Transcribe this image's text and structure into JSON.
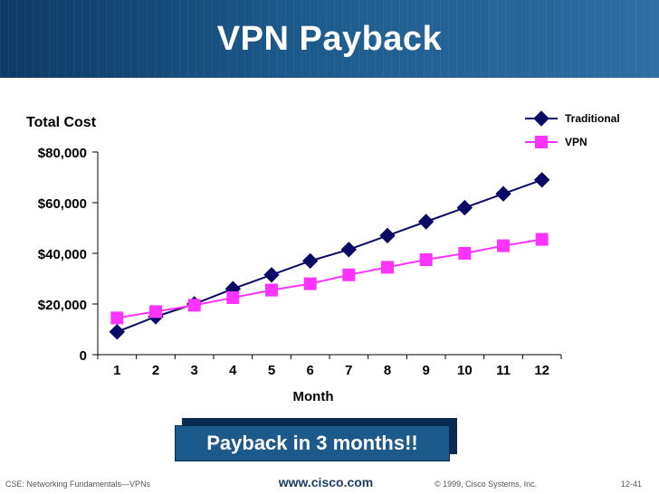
{
  "slide": {
    "title": "VPN Payback",
    "callout": "Payback in 3 months!!",
    "footer_left": "CSE: Networking Fundamentals—VPNs",
    "footer_center": "www.cisco.com",
    "footer_copyright": "© 1999, Cisco Systems, Inc.",
    "footer_page": "12-41"
  },
  "chart_data": {
    "type": "line",
    "title": "",
    "ylabel": "Total Cost",
    "xlabel": "Month",
    "categories": [
      "1",
      "2",
      "3",
      "4",
      "5",
      "6",
      "7",
      "8",
      "9",
      "10",
      "11",
      "12"
    ],
    "ylim": [
      0,
      80000
    ],
    "yticks": [
      0,
      20000,
      40000,
      60000,
      80000
    ],
    "ytick_labels": [
      "0",
      "$20,000",
      "$40,000",
      "$60,000",
      "$80,000"
    ],
    "legend_position": "top-right",
    "grid": false,
    "series": [
      {
        "name": "Traditional",
        "marker": "diamond",
        "color": "#0a0a66",
        "values": [
          9000,
          15000,
          20000,
          26000,
          31500,
          37000,
          41500,
          47000,
          52500,
          58000,
          63500,
          69000
        ]
      },
      {
        "name": "VPN",
        "marker": "square",
        "color": "#ff33ff",
        "values": [
          14500,
          17000,
          19500,
          22500,
          25500,
          28000,
          31500,
          34500,
          37500,
          40000,
          43000,
          45500
        ]
      }
    ]
  }
}
